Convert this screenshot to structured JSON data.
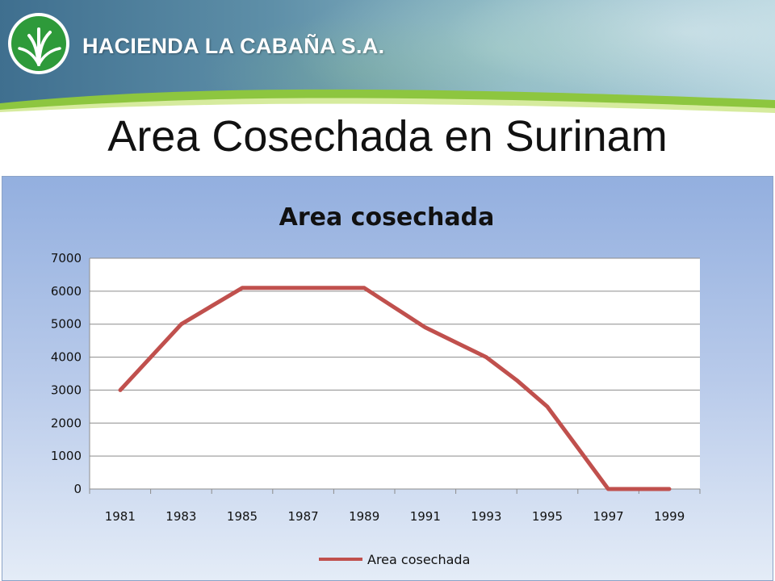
{
  "header": {
    "brand": "HACIENDA LA CABAÑA S.A.",
    "logo_icon": "palm-leaf-logo-icon"
  },
  "slide": {
    "title": "Area Cosechada en Surinam"
  },
  "colors": {
    "series_line": "#c0504d",
    "logo_green": "#2e9a3a",
    "header_band": "#8dc63f"
  },
  "chart_data": {
    "type": "line",
    "title": "Area cosechada",
    "xlabel": "",
    "ylabel": "",
    "categories": [
      "1981",
      "1983",
      "1985",
      "1987",
      "1989",
      "1991",
      "1993",
      "1995",
      "1997",
      "1999"
    ],
    "x": [
      1981,
      1982,
      1983,
      1984,
      1985,
      1986,
      1987,
      1988,
      1989,
      1990,
      1991,
      1992,
      1993,
      1994,
      1995,
      1996,
      1997,
      1998,
      1999
    ],
    "series": [
      {
        "name": "Area cosechada",
        "values": [
          3000,
          4000,
          5000,
          5550,
          6100,
          6100,
          6100,
          6100,
          6100,
          5500,
          4900,
          4450,
          4000,
          3300,
          2500,
          1250,
          0,
          0,
          0
        ]
      }
    ],
    "ylim": [
      0,
      7000
    ],
    "yticks": [
      "0",
      "1000",
      "2000",
      "3000",
      "4000",
      "5000",
      "6000",
      "7000"
    ],
    "grid": true,
    "legend": "bottom"
  }
}
